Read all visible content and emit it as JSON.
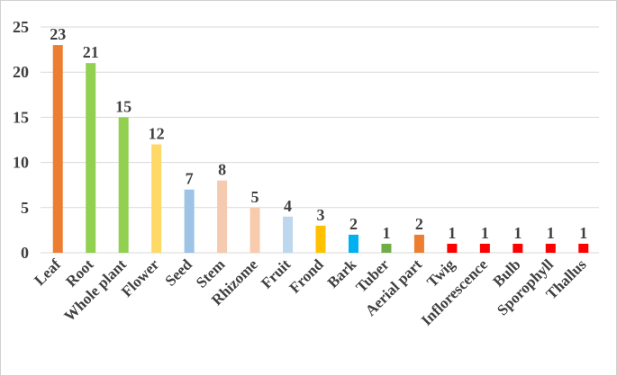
{
  "chart_data": {
    "type": "bar",
    "title": "",
    "xlabel": "",
    "ylabel": "",
    "ylim": [
      0,
      25
    ],
    "yticks": [
      0,
      5,
      10,
      15,
      20,
      25
    ],
    "grid": true,
    "legend": "none",
    "categories": [
      "Leaf",
      "Root",
      "Whole plant",
      "Flower",
      "Seed",
      "Stem",
      "Rhizome",
      "Fruit",
      "Frond",
      "Bark",
      "Tuber",
      "Aerial part",
      "Twig",
      "Inflorescence",
      "Bulb",
      "Sporophyll",
      "Thallus"
    ],
    "values": [
      23,
      21,
      15,
      12,
      7,
      8,
      5,
      4,
      3,
      2,
      1,
      2,
      1,
      1,
      1,
      1,
      1
    ],
    "colors": [
      "#ED7D31",
      "#92D050",
      "#92D050",
      "#FFD966",
      "#9DC3E6",
      "#F4CBB0",
      "#F8CBAD",
      "#BDD7EE",
      "#FFC000",
      "#00B0F0",
      "#70AD47",
      "#ED7D31",
      "#FF0000",
      "#FF0000",
      "#FF0000",
      "#FF0000",
      "#FF0000"
    ]
  }
}
